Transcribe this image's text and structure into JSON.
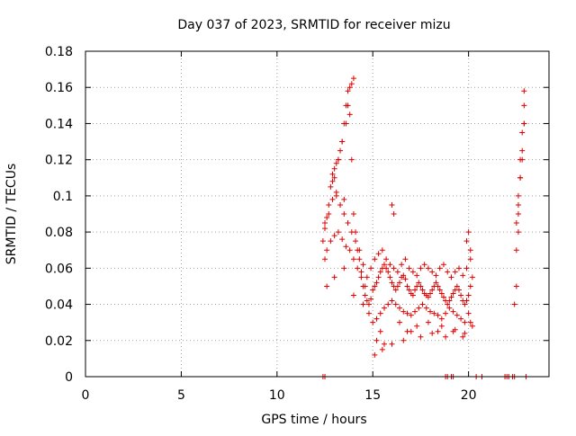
{
  "chart_data": {
    "type": "scatter",
    "title": "Day 037 of 2023, SRMTID for receiver mizu",
    "xlabel": "GPS time / hours",
    "ylabel": "SRMTID / TECUs",
    "xlim": [
      0,
      24.2
    ],
    "ylim": [
      0,
      0.18
    ],
    "x_ticks": [
      0,
      5,
      10,
      15,
      20
    ],
    "x_tick_labels": [
      "0",
      "5",
      "10",
      "15",
      "20"
    ],
    "y_ticks": [
      0,
      0.02,
      0.04,
      0.06,
      0.08,
      0.1,
      0.12,
      0.14,
      0.16,
      0.18
    ],
    "y_tick_labels": [
      "0",
      "0.02",
      "0.04",
      "0.06",
      "0.08",
      "0.1",
      "0.12",
      "0.14",
      "0.16",
      "0.18"
    ],
    "grid": true,
    "marker": "+",
    "color": "#e00000",
    "series": [
      {
        "x": [
          12.4,
          12.5,
          12.6,
          12.7,
          12.8,
          12.9,
          13.0,
          13.1,
          13.2,
          13.3,
          13.4,
          13.5,
          13.6,
          13.7,
          13.8,
          13.9,
          14.0,
          14.1,
          14.2,
          14.3,
          14.4,
          14.5,
          14.6,
          14.7,
          14.8,
          14.9,
          15.0,
          15.1,
          15.2,
          15.3,
          15.4,
          15.5,
          15.6,
          15.7,
          15.8,
          15.9,
          16.0,
          16.1,
          16.2,
          16.3,
          16.4,
          16.5,
          16.6,
          16.7,
          16.8,
          16.9,
          17.0,
          17.1,
          17.2,
          17.3,
          17.4,
          17.5,
          17.6,
          17.7,
          17.8,
          17.9,
          18.0,
          18.1,
          18.2,
          18.3,
          18.4,
          18.5,
          18.6,
          18.7,
          18.8,
          18.9,
          19.0,
          19.1,
          19.2,
          19.3,
          19.4,
          19.5,
          19.6,
          19.7,
          19.8,
          19.9,
          20.0,
          20.1,
          20.2,
          22.5,
          22.6,
          22.7,
          22.8,
          22.9,
          12.5,
          12.6,
          12.8,
          13.0,
          13.2,
          13.4,
          13.6,
          13.8,
          14.0,
          14.2,
          14.4,
          14.6,
          14.8,
          15.0,
          15.2,
          15.4,
          15.6,
          15.8,
          16.0,
          16.2,
          16.4,
          16.6,
          16.8,
          17.0,
          17.2,
          17.4,
          17.6,
          17.8,
          18.0,
          18.2,
          18.4,
          18.6,
          18.8,
          19.0,
          19.2,
          19.4,
          19.6,
          19.8,
          20.0,
          12.5,
          12.7,
          12.9,
          13.1,
          13.3,
          13.5,
          13.7,
          13.9,
          14.1,
          14.3,
          14.5,
          14.7,
          14.9,
          15.1,
          15.3,
          15.5,
          15.7,
          15.9,
          16.1,
          16.3,
          16.5,
          16.7,
          16.9,
          17.1,
          17.3,
          17.5,
          17.7,
          17.9,
          18.1,
          18.3,
          18.5,
          18.7,
          18.9,
          19.1,
          19.3,
          19.5,
          19.7,
          19.9,
          20.1,
          22.5,
          22.6,
          22.7,
          22.8,
          22.9,
          13.0,
          13.2,
          13.4,
          13.6,
          13.7,
          13.8,
          13.9,
          14.0,
          12.9,
          13.1,
          13.3,
          13.5,
          16.0,
          16.1,
          19.9,
          20.0,
          20.1,
          22.4,
          22.5,
          22.6,
          22.6,
          22.7,
          22.8,
          22.9,
          22.9,
          15.2,
          15.4,
          15.6,
          16.4,
          16.8,
          17.3,
          17.9,
          18.4,
          18.8,
          19.3,
          19.8,
          20.1,
          15.1,
          15.5,
          16.0,
          16.6,
          17.0,
          17.5,
          18.1,
          18.6,
          19.2,
          19.7,
          20.2,
          12.6,
          13.0,
          13.5,
          14.0,
          14.5,
          12.4,
          12.5,
          18.8,
          18.9,
          19.1,
          19.2,
          20.4,
          20.7,
          21.9,
          22.0,
          22.1,
          22.3,
          22.4,
          23.0
        ],
        "y": [
          0.075,
          0.082,
          0.088,
          0.095,
          0.105,
          0.112,
          0.115,
          0.118,
          0.12,
          0.125,
          0.13,
          0.14,
          0.15,
          0.158,
          0.145,
          0.12,
          0.09,
          0.08,
          0.07,
          0.065,
          0.058,
          0.05,
          0.045,
          0.042,
          0.04,
          0.043,
          0.048,
          0.05,
          0.052,
          0.055,
          0.058,
          0.06,
          0.062,
          0.06,
          0.058,
          0.055,
          0.052,
          0.05,
          0.048,
          0.05,
          0.052,
          0.055,
          0.056,
          0.054,
          0.05,
          0.048,
          0.046,
          0.045,
          0.048,
          0.05,
          0.052,
          0.05,
          0.048,
          0.046,
          0.045,
          0.044,
          0.046,
          0.048,
          0.05,
          0.052,
          0.05,
          0.048,
          0.046,
          0.044,
          0.042,
          0.04,
          0.042,
          0.044,
          0.046,
          0.048,
          0.05,
          0.048,
          0.045,
          0.042,
          0.04,
          0.042,
          0.045,
          0.05,
          0.055,
          0.085,
          0.1,
          0.12,
          0.135,
          0.15,
          0.065,
          0.07,
          0.075,
          0.078,
          0.08,
          0.076,
          0.072,
          0.07,
          0.065,
          0.06,
          0.055,
          0.05,
          0.035,
          0.03,
          0.032,
          0.035,
          0.038,
          0.04,
          0.042,
          0.04,
          0.038,
          0.036,
          0.035,
          0.034,
          0.036,
          0.038,
          0.04,
          0.038,
          0.036,
          0.035,
          0.034,
          0.032,
          0.035,
          0.038,
          0.036,
          0.034,
          0.032,
          0.03,
          0.035,
          0.085,
          0.09,
          0.098,
          0.1,
          0.095,
          0.09,
          0.085,
          0.08,
          0.075,
          0.07,
          0.062,
          0.055,
          0.06,
          0.065,
          0.068,
          0.07,
          0.065,
          0.062,
          0.06,
          0.058,
          0.062,
          0.065,
          0.06,
          0.058,
          0.056,
          0.06,
          0.062,
          0.06,
          0.058,
          0.056,
          0.06,
          0.062,
          0.058,
          0.055,
          0.058,
          0.06,
          0.056,
          0.06,
          0.065,
          0.07,
          0.09,
          0.11,
          0.12,
          0.14,
          0.11,
          0.12,
          0.13,
          0.14,
          0.15,
          0.16,
          0.162,
          0.165,
          0.108,
          0.102,
          0.095,
          0.098,
          0.095,
          0.09,
          0.075,
          0.08,
          0.07,
          0.04,
          0.05,
          0.08,
          0.095,
          0.11,
          0.125,
          0.14,
          0.158,
          0.02,
          0.025,
          0.018,
          0.03,
          0.025,
          0.028,
          0.03,
          0.025,
          0.022,
          0.026,
          0.024,
          0.03,
          0.012,
          0.015,
          0.018,
          0.02,
          0.025,
          0.022,
          0.024,
          0.028,
          0.025,
          0.022,
          0.028,
          0.05,
          0.055,
          0.06,
          0.045,
          0.04,
          0,
          0,
          0,
          0,
          0,
          0,
          0,
          0,
          0,
          0,
          0,
          0,
          0,
          0
        ]
      }
    ]
  }
}
